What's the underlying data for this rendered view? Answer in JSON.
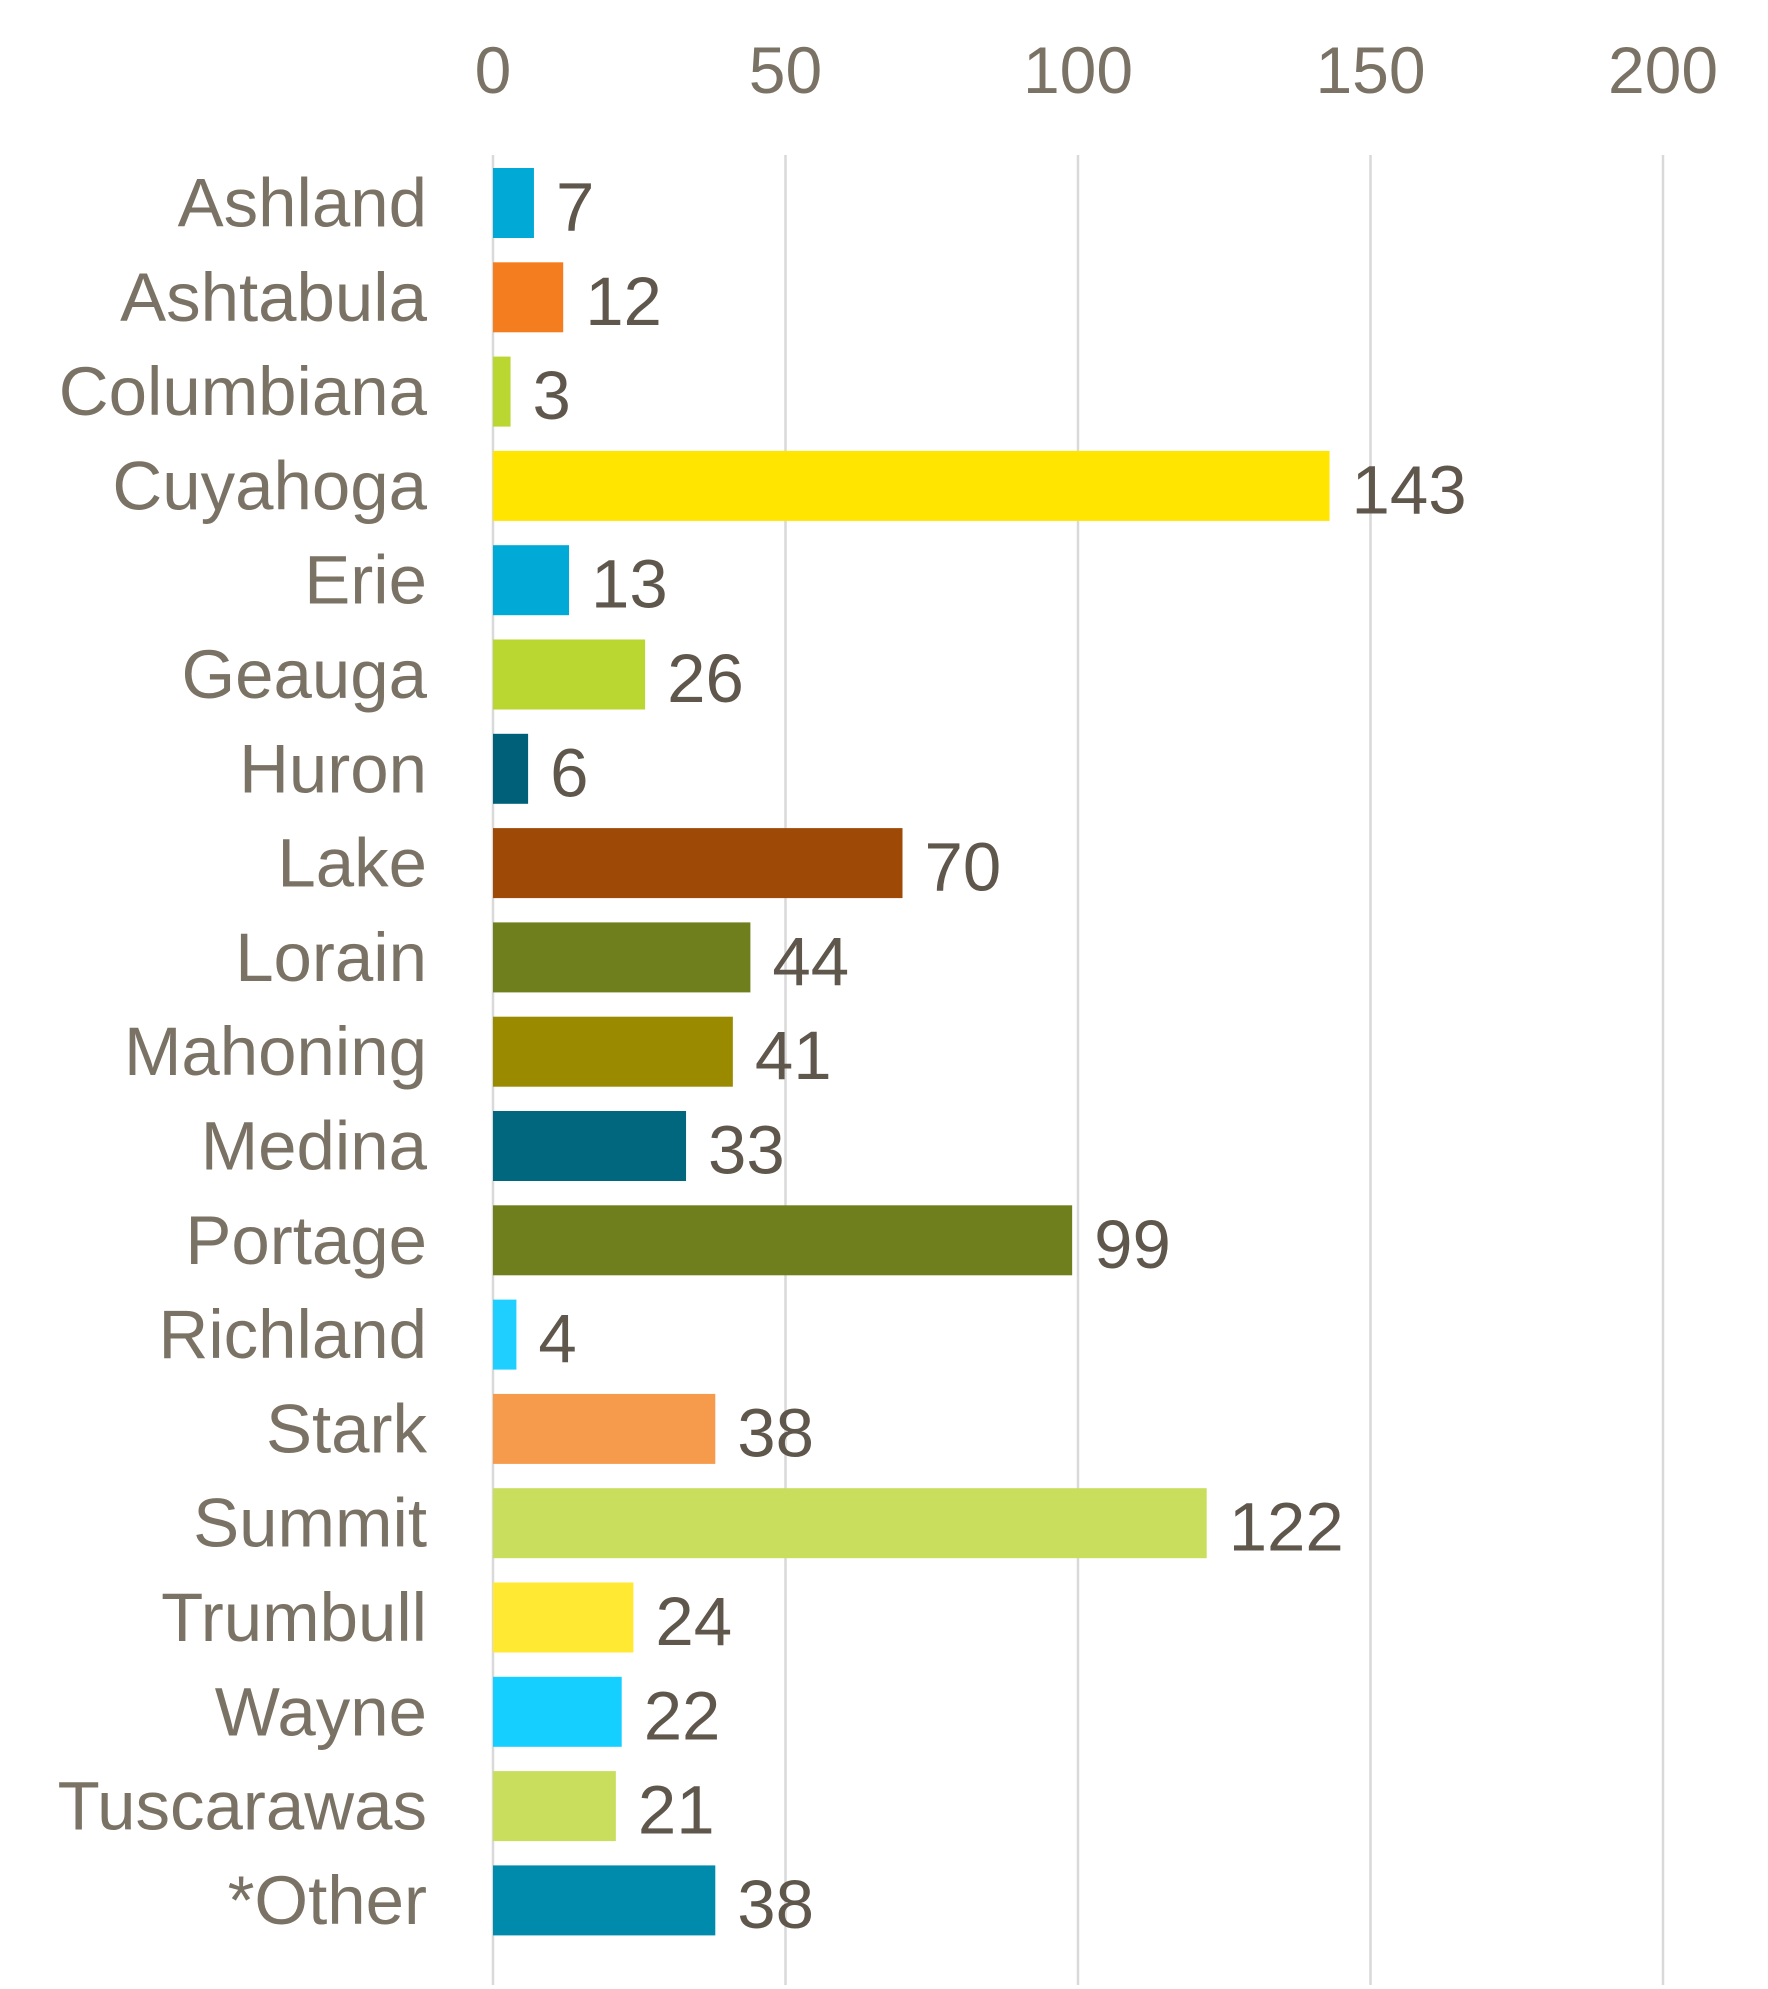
{
  "chart_data": {
    "type": "bar",
    "orientation": "horizontal",
    "title": "",
    "xlabel": "",
    "ylabel": "",
    "xlim": [
      0,
      200
    ],
    "x_ticks": [
      0,
      50,
      100,
      150,
      200
    ],
    "x_tick_labels": [
      "0",
      "50",
      "100",
      "150",
      "200"
    ],
    "x_axis_position": "top",
    "grid": true,
    "legend": false,
    "categories": [
      "Ashland",
      "Ashtabula",
      "Columbiana",
      "Cuyahoga",
      "Erie",
      "Geauga",
      "Huron",
      "Lake",
      "Lorain",
      "Mahoning",
      "Medina",
      "Portage",
      "Richland",
      "Stark",
      "Summit",
      "Trumbull",
      "Wayne",
      "Tuscarawas",
      "*Other"
    ],
    "values": [
      7,
      12,
      3,
      143,
      13,
      26,
      6,
      70,
      44,
      41,
      33,
      99,
      4,
      38,
      122,
      24,
      22,
      21,
      38
    ],
    "value_labels": [
      "7",
      "12",
      "3",
      "143",
      "13",
      "26",
      "6",
      "70",
      "44",
      "41",
      "33",
      "99",
      "4",
      "38",
      "122",
      "24",
      "22",
      "21",
      "38"
    ],
    "colors": [
      "#00a9d6",
      "#f47d20",
      "#bad631",
      "#ffe500",
      "#00a9d6",
      "#bad631",
      "#005f79",
      "#9e4a06",
      "#6f7f1e",
      "#998a00",
      "#00677f",
      "#6f7f1e",
      "#1ecfff",
      "#f69a4c",
      "#c8de5c",
      "#ffe933",
      "#14cfff",
      "#c8de5c",
      "#008aab"
    ]
  }
}
